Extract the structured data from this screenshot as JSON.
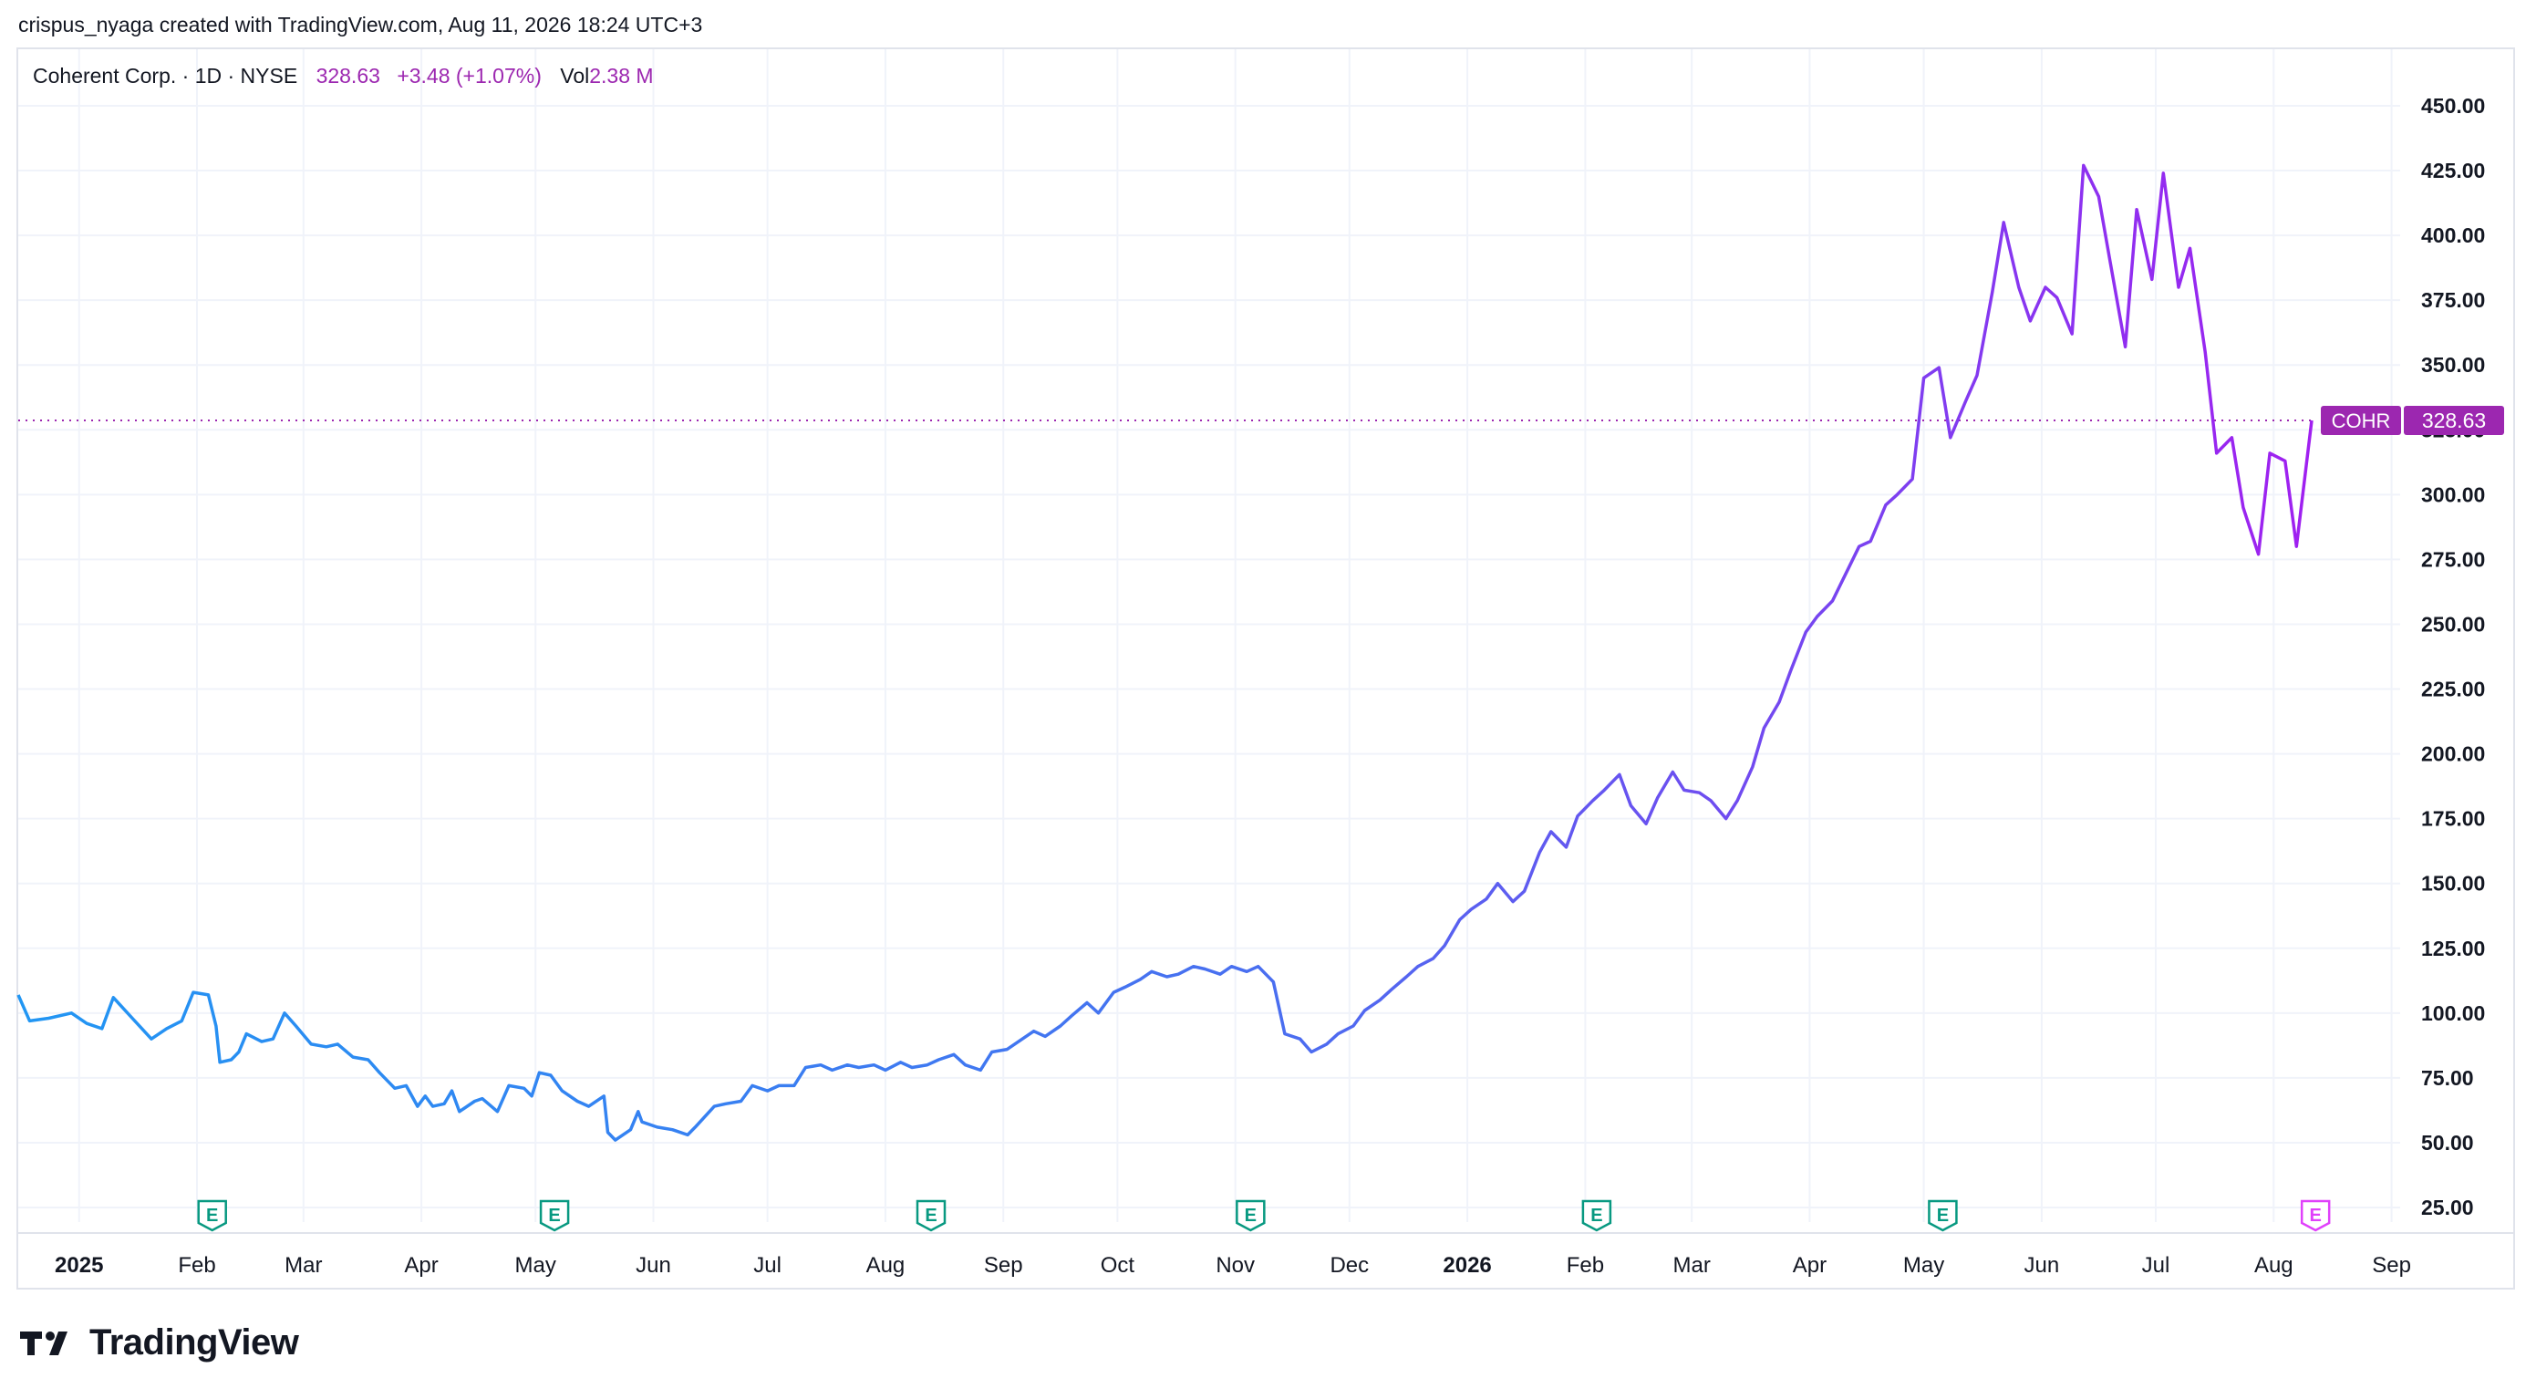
{
  "header": {
    "attribution": "crispus_nyaga created with TradingView.com, Aug 11, 2026 18:24 UTC+3"
  },
  "legend": {
    "name": "Coherent Corp. · 1D · NYSE",
    "price": "328.63",
    "change": "+3.48 (+1.07%)",
    "vol_label": "Vol",
    "vol_value": "2.38 M"
  },
  "colors": {
    "line_start": "#2196f3",
    "line_end": "#a020f0",
    "accent": "#9c27b0",
    "earnings": "#089981",
    "earnings_upcoming": "#e040fb",
    "grid": "#f0f3fa"
  },
  "footer": {
    "brand": "TradingView",
    "logo_icon": "tradingview-logo-icon"
  },
  "chart_data": {
    "type": "line",
    "symbol": "COHR",
    "last_price_label": "328.63",
    "ylim": [
      5,
      470
    ],
    "y_ticks": [
      "450.00",
      "425.00",
      "400.00",
      "375.00",
      "350.00",
      "325.00",
      "300.00",
      "275.00",
      "250.00",
      "225.00",
      "200.00",
      "175.00",
      "150.00",
      "125.00",
      "100.00",
      "75.00",
      "50.00",
      "25.00"
    ],
    "x_ticks": [
      {
        "label": "2025",
        "x": "2025-01-01",
        "bold": true
      },
      {
        "label": "Feb",
        "x": "2025-02-01"
      },
      {
        "label": "Mar",
        "x": "2025-03-01"
      },
      {
        "label": "Apr",
        "x": "2025-04-01"
      },
      {
        "label": "May",
        "x": "2025-05-01"
      },
      {
        "label": "Jun",
        "x": "2025-06-01"
      },
      {
        "label": "Jul",
        "x": "2025-07-01"
      },
      {
        "label": "Aug",
        "x": "2025-08-01"
      },
      {
        "label": "Sep",
        "x": "2025-09-01"
      },
      {
        "label": "Oct",
        "x": "2025-10-01"
      },
      {
        "label": "Nov",
        "x": "2025-11-01"
      },
      {
        "label": "Dec",
        "x": "2025-12-01"
      },
      {
        "label": "2026",
        "x": "2026-01-01",
        "bold": true
      },
      {
        "label": "Feb",
        "x": "2026-02-01"
      },
      {
        "label": "Mar",
        "x": "2026-03-01"
      },
      {
        "label": "Apr",
        "x": "2026-04-01"
      },
      {
        "label": "May",
        "x": "2026-05-01"
      },
      {
        "label": "Jun",
        "x": "2026-06-01"
      },
      {
        "label": "Jul",
        "x": "2026-07-01"
      },
      {
        "label": "Aug",
        "x": "2026-08-01"
      },
      {
        "label": "Sep",
        "x": "2026-09-01"
      }
    ],
    "earnings_markers": [
      {
        "label": "E",
        "x": "2025-02-05"
      },
      {
        "label": "E",
        "x": "2025-05-06"
      },
      {
        "label": "E",
        "x": "2025-08-13"
      },
      {
        "label": "E",
        "x": "2025-11-05"
      },
      {
        "label": "E",
        "x": "2026-02-04"
      },
      {
        "label": "E",
        "x": "2026-05-06"
      },
      {
        "label": "E",
        "x": "2026-08-12",
        "upcoming": true
      }
    ],
    "series": [
      {
        "points": [
          [
            "2024-12-16",
            107
          ],
          [
            "2024-12-19",
            97
          ],
          [
            "2024-12-24",
            98
          ],
          [
            "2024-12-30",
            100
          ],
          [
            "2025-01-03",
            96
          ],
          [
            "2025-01-07",
            94
          ],
          [
            "2025-01-10",
            106
          ],
          [
            "2025-01-15",
            98
          ],
          [
            "2025-01-20",
            90
          ],
          [
            "2025-01-24",
            94
          ],
          [
            "2025-01-28",
            97
          ],
          [
            "2025-01-31",
            108
          ],
          [
            "2025-02-04",
            107
          ],
          [
            "2025-02-06",
            95
          ],
          [
            "2025-02-07",
            81
          ],
          [
            "2025-02-10",
            82
          ],
          [
            "2025-02-12",
            85
          ],
          [
            "2025-02-14",
            92
          ],
          [
            "2025-02-18",
            89
          ],
          [
            "2025-02-21",
            90
          ],
          [
            "2025-02-24",
            100
          ],
          [
            "2025-02-27",
            95
          ],
          [
            "2025-03-03",
            88
          ],
          [
            "2025-03-07",
            87
          ],
          [
            "2025-03-10",
            88
          ],
          [
            "2025-03-14",
            83
          ],
          [
            "2025-03-18",
            82
          ],
          [
            "2025-03-21",
            77
          ],
          [
            "2025-03-25",
            71
          ],
          [
            "2025-03-28",
            72
          ],
          [
            "2025-03-31",
            64
          ],
          [
            "2025-04-02",
            68
          ],
          [
            "2025-04-04",
            64
          ],
          [
            "2025-04-07",
            65
          ],
          [
            "2025-04-09",
            70
          ],
          [
            "2025-04-11",
            62
          ],
          [
            "2025-04-15",
            66
          ],
          [
            "2025-04-17",
            67
          ],
          [
            "2025-04-21",
            62
          ],
          [
            "2025-04-24",
            72
          ],
          [
            "2025-04-28",
            71
          ],
          [
            "2025-04-30",
            68
          ],
          [
            "2025-05-02",
            77
          ],
          [
            "2025-05-05",
            76
          ],
          [
            "2025-05-08",
            70
          ],
          [
            "2025-05-12",
            66
          ],
          [
            "2025-05-15",
            64
          ],
          [
            "2025-05-19",
            68
          ],
          [
            "2025-05-20",
            54
          ],
          [
            "2025-05-22",
            51
          ],
          [
            "2025-05-26",
            55
          ],
          [
            "2025-05-28",
            62
          ],
          [
            "2025-05-29",
            58
          ],
          [
            "2025-06-02",
            56
          ],
          [
            "2025-06-06",
            55
          ],
          [
            "2025-06-10",
            53
          ],
          [
            "2025-06-12",
            56
          ],
          [
            "2025-06-17",
            64
          ],
          [
            "2025-06-20",
            65
          ],
          [
            "2025-06-24",
            66
          ],
          [
            "2025-06-27",
            72
          ],
          [
            "2025-07-01",
            70
          ],
          [
            "2025-07-04",
            72
          ],
          [
            "2025-07-08",
            72
          ],
          [
            "2025-07-11",
            79
          ],
          [
            "2025-07-15",
            80
          ],
          [
            "2025-07-18",
            78
          ],
          [
            "2025-07-22",
            80
          ],
          [
            "2025-07-25",
            79
          ],
          [
            "2025-07-29",
            80
          ],
          [
            "2025-08-01",
            78
          ],
          [
            "2025-08-05",
            81
          ],
          [
            "2025-08-08",
            79
          ],
          [
            "2025-08-12",
            80
          ],
          [
            "2025-08-15",
            82
          ],
          [
            "2025-08-19",
            84
          ],
          [
            "2025-08-22",
            80
          ],
          [
            "2025-08-26",
            78
          ],
          [
            "2025-08-29",
            85
          ],
          [
            "2025-09-02",
            86
          ],
          [
            "2025-09-05",
            89
          ],
          [
            "2025-09-09",
            93
          ],
          [
            "2025-09-12",
            91
          ],
          [
            "2025-09-16",
            95
          ],
          [
            "2025-09-19",
            99
          ],
          [
            "2025-09-23",
            104
          ],
          [
            "2025-09-26",
            100
          ],
          [
            "2025-09-30",
            108
          ],
          [
            "2025-10-03",
            110
          ],
          [
            "2025-10-07",
            113
          ],
          [
            "2025-10-10",
            116
          ],
          [
            "2025-10-14",
            114
          ],
          [
            "2025-10-17",
            115
          ],
          [
            "2025-10-21",
            118
          ],
          [
            "2025-10-24",
            117
          ],
          [
            "2025-10-28",
            115
          ],
          [
            "2025-10-31",
            118
          ],
          [
            "2025-11-04",
            116
          ],
          [
            "2025-11-07",
            118
          ],
          [
            "2025-11-11",
            112
          ],
          [
            "2025-11-14",
            92
          ],
          [
            "2025-11-18",
            90
          ],
          [
            "2025-11-21",
            85
          ],
          [
            "2025-11-25",
            88
          ],
          [
            "2025-11-28",
            92
          ],
          [
            "2025-12-02",
            95
          ],
          [
            "2025-12-05",
            101
          ],
          [
            "2025-12-09",
            105
          ],
          [
            "2025-12-12",
            109
          ],
          [
            "2025-12-16",
            114
          ],
          [
            "2025-12-19",
            118
          ],
          [
            "2025-12-23",
            121
          ],
          [
            "2025-12-26",
            126
          ],
          [
            "2025-12-30",
            136
          ],
          [
            "2026-01-02",
            140
          ],
          [
            "2026-01-06",
            144
          ],
          [
            "2026-01-09",
            150
          ],
          [
            "2026-01-13",
            143
          ],
          [
            "2026-01-16",
            147
          ],
          [
            "2026-01-20",
            162
          ],
          [
            "2026-01-23",
            170
          ],
          [
            "2026-01-27",
            164
          ],
          [
            "2026-01-30",
            176
          ],
          [
            "2026-02-03",
            182
          ],
          [
            "2026-02-06",
            186
          ],
          [
            "2026-02-10",
            192
          ],
          [
            "2026-02-13",
            180
          ],
          [
            "2026-02-17",
            173
          ],
          [
            "2026-02-20",
            183
          ],
          [
            "2026-02-24",
            193
          ],
          [
            "2026-02-27",
            186
          ],
          [
            "2026-03-03",
            185
          ],
          [
            "2026-03-06",
            182
          ],
          [
            "2026-03-10",
            175
          ],
          [
            "2026-03-13",
            182
          ],
          [
            "2026-03-17",
            195
          ],
          [
            "2026-03-20",
            210
          ],
          [
            "2026-03-24",
            220
          ],
          [
            "2026-03-27",
            232
          ],
          [
            "2026-03-31",
            247
          ],
          [
            "2026-04-03",
            253
          ],
          [
            "2026-04-07",
            259
          ],
          [
            "2026-04-10",
            268
          ],
          [
            "2026-04-14",
            280
          ],
          [
            "2026-04-17",
            282
          ],
          [
            "2026-04-21",
            296
          ],
          [
            "2026-04-24",
            300
          ],
          [
            "2026-04-28",
            306
          ],
          [
            "2026-05-01",
            345
          ],
          [
            "2026-05-05",
            349
          ],
          [
            "2026-05-08",
            322
          ],
          [
            "2026-05-12",
            336
          ],
          [
            "2026-05-15",
            346
          ],
          [
            "2026-05-19",
            378
          ],
          [
            "2026-05-22",
            405
          ],
          [
            "2026-05-26",
            380
          ],
          [
            "2026-05-29",
            367
          ],
          [
            "2026-06-02",
            380
          ],
          [
            "2026-06-05",
            376
          ],
          [
            "2026-06-09",
            362
          ],
          [
            "2026-06-12",
            427
          ],
          [
            "2026-06-16",
            415
          ],
          [
            "2026-06-19",
            390
          ],
          [
            "2026-06-23",
            357
          ],
          [
            "2026-06-26",
            410
          ],
          [
            "2026-06-30",
            383
          ],
          [
            "2026-07-03",
            424
          ],
          [
            "2026-07-07",
            380
          ],
          [
            "2026-07-10",
            395
          ],
          [
            "2026-07-14",
            355
          ],
          [
            "2026-07-17",
            316
          ],
          [
            "2026-07-21",
            322
          ],
          [
            "2026-07-24",
            295
          ],
          [
            "2026-07-28",
            277
          ],
          [
            "2026-07-31",
            316
          ],
          [
            "2026-08-04",
            313
          ],
          [
            "2026-08-07",
            280
          ],
          [
            "2026-08-11",
            328.63
          ]
        ]
      }
    ]
  }
}
